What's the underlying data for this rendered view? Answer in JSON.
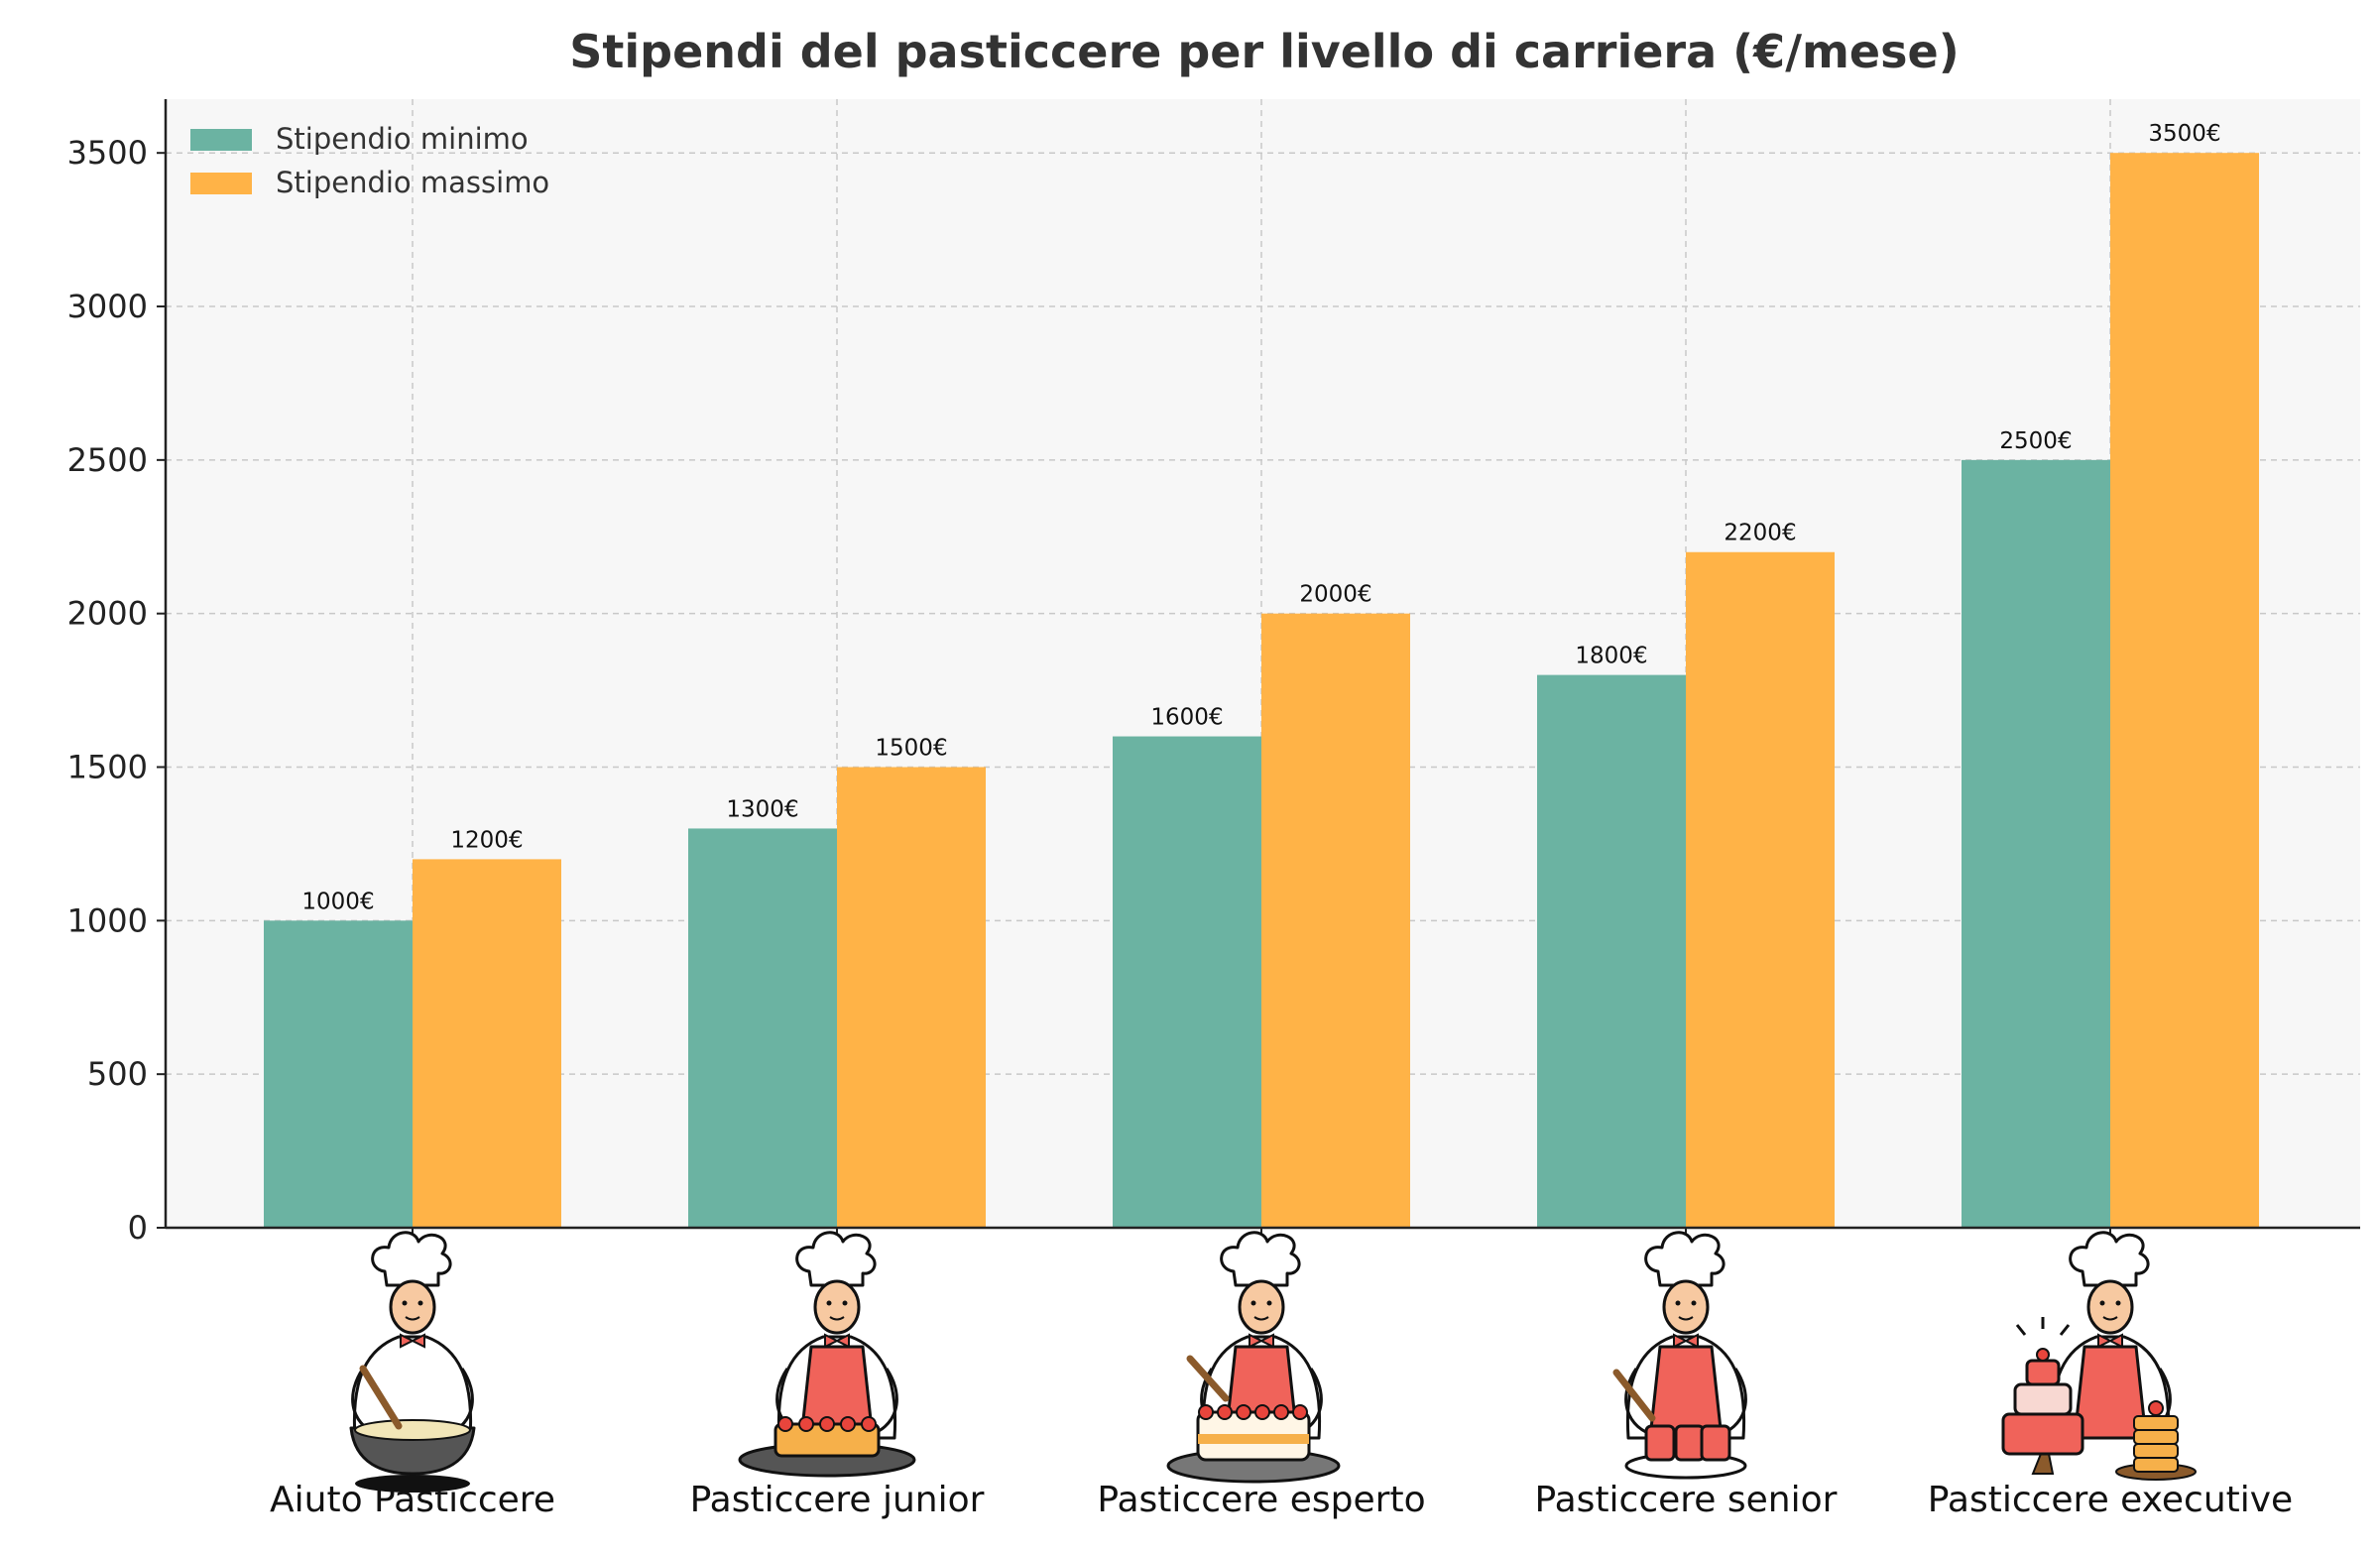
{
  "chart_data": {
    "type": "bar",
    "title": "Stipendi del pasticcere per livello di carriera (€/mese)",
    "xlabel": "",
    "ylabel": "",
    "categories": [
      "Aiuto Pasticcere",
      "Pasticcere junior",
      "Pasticcere esperto",
      "Pasticcere senior",
      "Pasticcere executive"
    ],
    "series": [
      {
        "name": "Stipendio minimo",
        "values": [
          1000,
          1300,
          1600,
          1800,
          2500
        ],
        "color": "#6bb3a2"
      },
      {
        "name": "Stipendio massimo",
        "values": [
          1200,
          1500,
          2000,
          2200,
          3500
        ],
        "color": "#ffb347"
      }
    ],
    "value_suffix": "€",
    "ylim": [
      0,
      3675
    ],
    "yticks": [
      0,
      500,
      1000,
      1500,
      2000,
      2500,
      3000,
      3500
    ],
    "grid": true,
    "legend_position": "top-left",
    "category_icons": [
      "pastry-chef-whisking-bowl-icon",
      "pastry-chef-decorating-tart-icon",
      "pastry-chef-whisking-cake-icon",
      "pastry-chef-with-pastries-icon",
      "pastry-chef-with-tiered-cakes-icon"
    ]
  }
}
